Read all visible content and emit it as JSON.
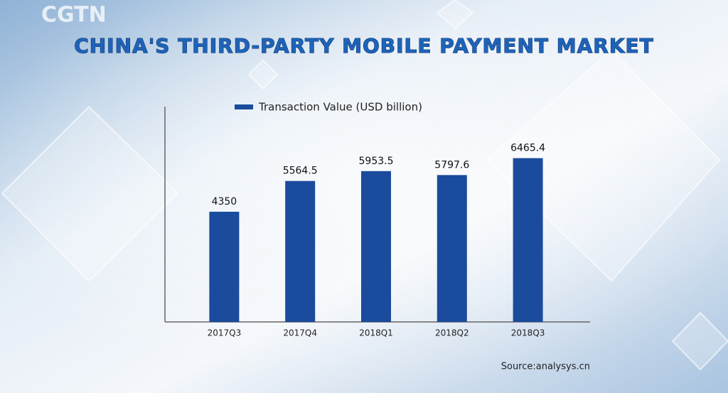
{
  "logo": "CGTN",
  "chart_data": {
    "type": "bar",
    "title": "CHINA'S THIRD-PARTY MOBILE PAYMENT MARKET",
    "categories": [
      "2017Q3",
      "2017Q4",
      "2018Q1",
      "2018Q2",
      "2018Q3"
    ],
    "series": [
      {
        "name": "Transaction Value (USD billion)",
        "color": "#1a4b9c",
        "values": [
          4350,
          5564.5,
          5953.5,
          5797.6,
          6465.4
        ]
      }
    ],
    "ylim": [
      0,
      8500
    ],
    "source": "Source:analysys.cn"
  }
}
